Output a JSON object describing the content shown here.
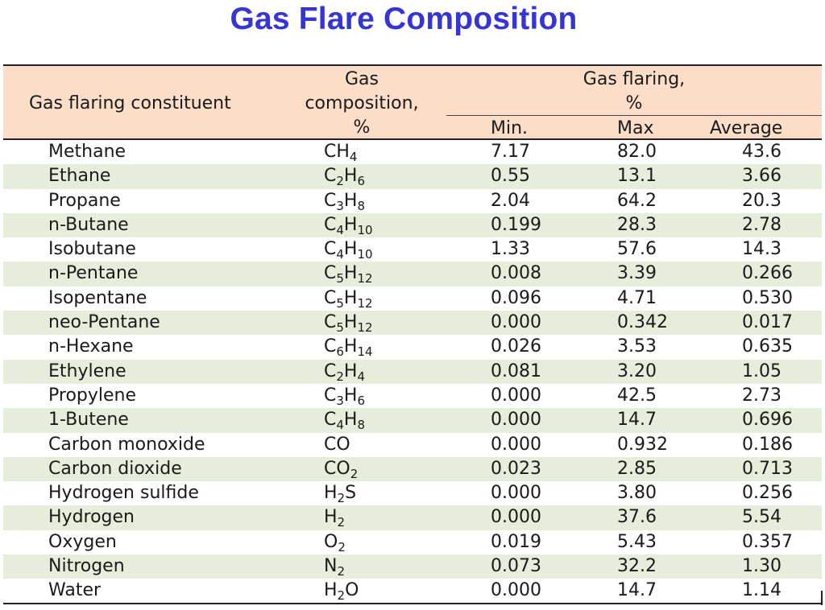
{
  "title": "Gas Flare Composition",
  "header": {
    "constituent": "Gas flaring constituent",
    "composition_line1": "Gas",
    "composition_line2": "composition,",
    "composition_line3": "%",
    "flaring_line1": "Gas flaring,",
    "flaring_line2": "%",
    "min": "Min.",
    "max": "Max",
    "average": "Average"
  },
  "rows": [
    {
      "name": "Methane",
      "formula": [
        [
          "C",
          ""
        ],
        [
          "H",
          "4"
        ]
      ],
      "min": "7.17",
      "max": "82.0",
      "avg": "43.6"
    },
    {
      "name": "Ethane",
      "formula": [
        [
          "C",
          "2"
        ],
        [
          "H",
          "6"
        ]
      ],
      "min": "0.55",
      "max": "13.1",
      "avg": "3.66"
    },
    {
      "name": "Propane",
      "formula": [
        [
          "C",
          "3"
        ],
        [
          "H",
          "8"
        ]
      ],
      "min": "2.04",
      "max": "64.2",
      "avg": "20.3"
    },
    {
      "name": "n-Butane",
      "formula": [
        [
          "C",
          "4"
        ],
        [
          "H",
          "10"
        ]
      ],
      "min": "0.199",
      "max": "28.3",
      "avg": "2.78"
    },
    {
      "name": "Isobutane",
      "formula": [
        [
          "C",
          "4"
        ],
        [
          "H",
          "10"
        ]
      ],
      "min": "1.33",
      "max": "57.6",
      "avg": "14.3"
    },
    {
      "name": "n-Pentane",
      "formula": [
        [
          "C",
          "5"
        ],
        [
          "H",
          "12"
        ]
      ],
      "min": "0.008",
      "max": "3.39",
      "avg": "0.266"
    },
    {
      "name": "Isopentane",
      "formula": [
        [
          "C",
          "5"
        ],
        [
          "H",
          "12"
        ]
      ],
      "min": "0.096",
      "max": "4.71",
      "avg": "0.530"
    },
    {
      "name": "neo-Pentane",
      "formula": [
        [
          "C",
          "5"
        ],
        [
          "H",
          "12"
        ]
      ],
      "min": "0.000",
      "max": "0.342",
      "avg": "0.017"
    },
    {
      "name": "n-Hexane",
      "formula": [
        [
          "C",
          "6"
        ],
        [
          "H",
          "14"
        ]
      ],
      "min": "0.026",
      "max": "3.53",
      "avg": "0.635"
    },
    {
      "name": "Ethylene",
      "formula": [
        [
          "C",
          "2"
        ],
        [
          "H",
          "4"
        ]
      ],
      "min": "0.081",
      "max": "3.20",
      "avg": "1.05"
    },
    {
      "name": "Propylene",
      "formula": [
        [
          "C",
          "3"
        ],
        [
          "H",
          "6"
        ]
      ],
      "min": "0.000",
      "max": "42.5",
      "avg": "2.73"
    },
    {
      "name": "1-Butene",
      "formula": [
        [
          "C",
          "4"
        ],
        [
          "H",
          "8"
        ]
      ],
      "min": "0.000",
      "max": "14.7",
      "avg": "0.696"
    },
    {
      "name": "Carbon monoxide",
      "formula": [
        [
          "CO",
          ""
        ]
      ],
      "min": "0.000",
      "max": "0.932",
      "avg": "0.186"
    },
    {
      "name": "Carbon dioxide",
      "formula": [
        [
          "CO",
          "2"
        ]
      ],
      "min": "0.023",
      "max": "2.85",
      "avg": "0.713"
    },
    {
      "name": "Hydrogen sulfide",
      "formula": [
        [
          "H",
          "2"
        ],
        [
          "S",
          ""
        ]
      ],
      "min": "0.000",
      "max": "3.80",
      "avg": "0.256"
    },
    {
      "name": "Hydrogen",
      "formula": [
        [
          "H",
          "2"
        ]
      ],
      "min": "0.000",
      "max": "37.6",
      "avg": "5.54"
    },
    {
      "name": "Oxygen",
      "formula": [
        [
          "O",
          "2"
        ]
      ],
      "min": "0.019",
      "max": "5.43",
      "avg": "0.357"
    },
    {
      "name": "Nitrogen",
      "formula": [
        [
          "N",
          "2"
        ]
      ],
      "min": "0.073",
      "max": "32.2",
      "avg": "1.30"
    },
    {
      "name": "Water",
      "formula": [
        [
          "H",
          "2"
        ],
        [
          "O",
          ""
        ]
      ],
      "min": "0.000",
      "max": "14.7",
      "avg": "1.14"
    }
  ],
  "colors": {
    "title": "#3535d6",
    "header_bg": "#fbddc8",
    "stripe_bg": "#e6eedb"
  }
}
